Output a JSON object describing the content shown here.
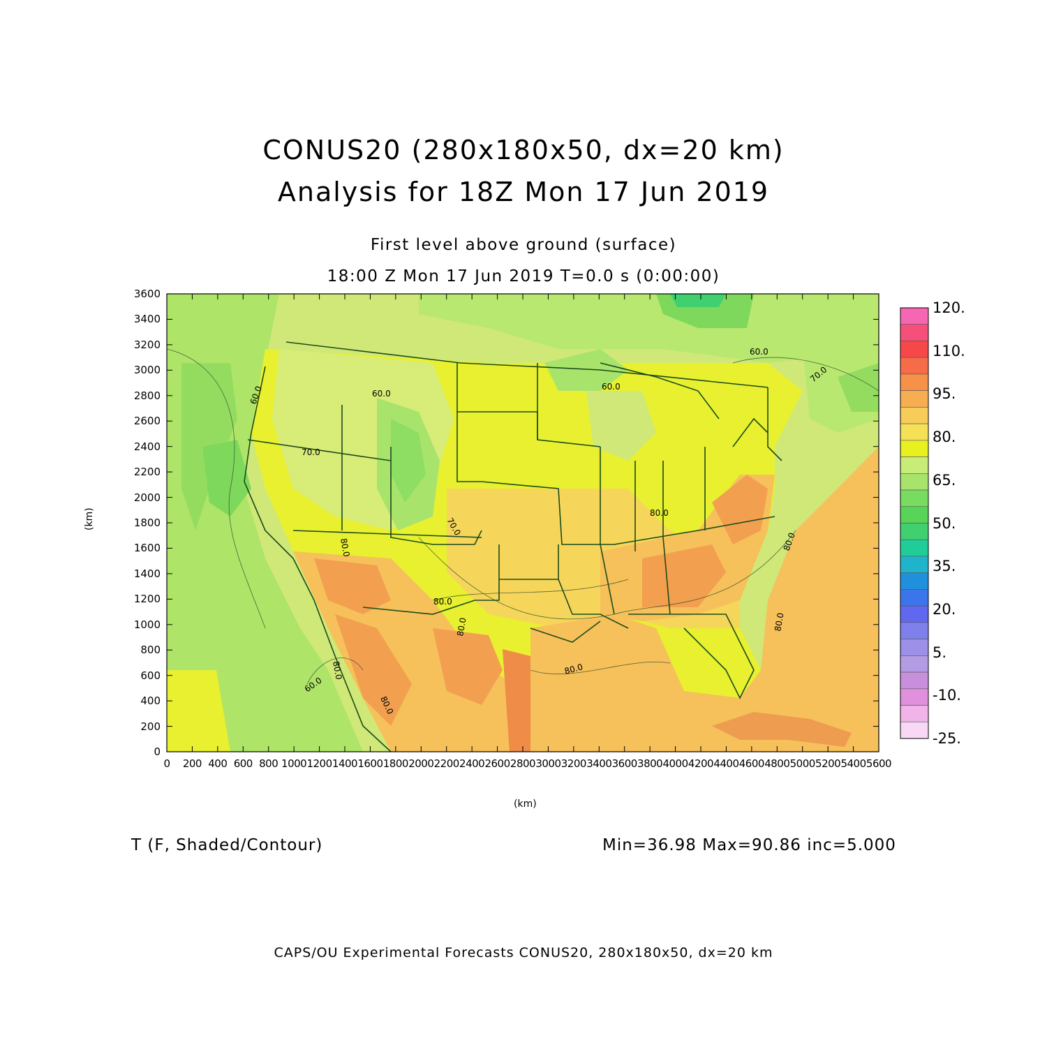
{
  "title": {
    "line1": "CONUS20 (280x180x50, dx=20 km)",
    "line2": "Analysis for 18Z Mon 17 Jun 2019"
  },
  "subtitle": {
    "level": "First level above ground (surface)",
    "time": "18:00 Z Mon 17 Jun 2019    T=0.0 s (0:00:00)"
  },
  "axes": {
    "xlabel": "(km)",
    "ylabel": "(km)",
    "xticks": [
      "0",
      "200",
      "400",
      "600",
      "800",
      "1000",
      "1200",
      "1400",
      "1600",
      "1800",
      "2000",
      "2200",
      "2400",
      "2600",
      "2800",
      "3000",
      "3200",
      "3400",
      "3600",
      "3800",
      "4000",
      "4200",
      "4400",
      "4600",
      "4800",
      "5000",
      "5200",
      "5400",
      "5600"
    ],
    "yticks": [
      "0",
      "200",
      "400",
      "600",
      "800",
      "1000",
      "1200",
      "1400",
      "1600",
      "1800",
      "2000",
      "2200",
      "2400",
      "2600",
      "2800",
      "3000",
      "3200",
      "3400",
      "3600"
    ],
    "xlim": [
      0,
      5600
    ],
    "ylim": [
      0,
      3600
    ]
  },
  "colorbar": {
    "labels": [
      "120.",
      "110.",
      "95.",
      "80.",
      "65.",
      "50.",
      "35.",
      "20.",
      "5.",
      "-10.",
      "-25."
    ],
    "colors": [
      "#f766b2",
      "#f6507a",
      "#f64848",
      "#f76c48",
      "#f79048",
      "#f7ae50",
      "#f7cc58",
      "#f6e058",
      "#e8f020",
      "#c8ec78",
      "#a8e46c",
      "#78dc60",
      "#58d458",
      "#40d070",
      "#20cc98",
      "#20b4cc",
      "#2090dc",
      "#3c74ec",
      "#6068f0",
      "#8080ec",
      "#9c90e8",
      "#b49ce4",
      "#c890dc",
      "#e090dc",
      "#f0b4e8",
      "#f8d8f4"
    ]
  },
  "contour_labels": [
    "60.0",
    "60.0",
    "60.0",
    "60.0",
    "60.0",
    "70.0",
    "70.0",
    "70.0",
    "80.0",
    "80.0",
    "80.0",
    "80.0",
    "80.0",
    "80.0",
    "80.0",
    "80.0",
    "80.0"
  ],
  "legend": {
    "field": "T (F, Shaded/Contour)",
    "stats": "Min=36.98 Max=90.86 inc=5.000"
  },
  "footer": "CAPS/OU Experimental Forecasts  CONUS20, 280x180x50, dx=20 km"
}
